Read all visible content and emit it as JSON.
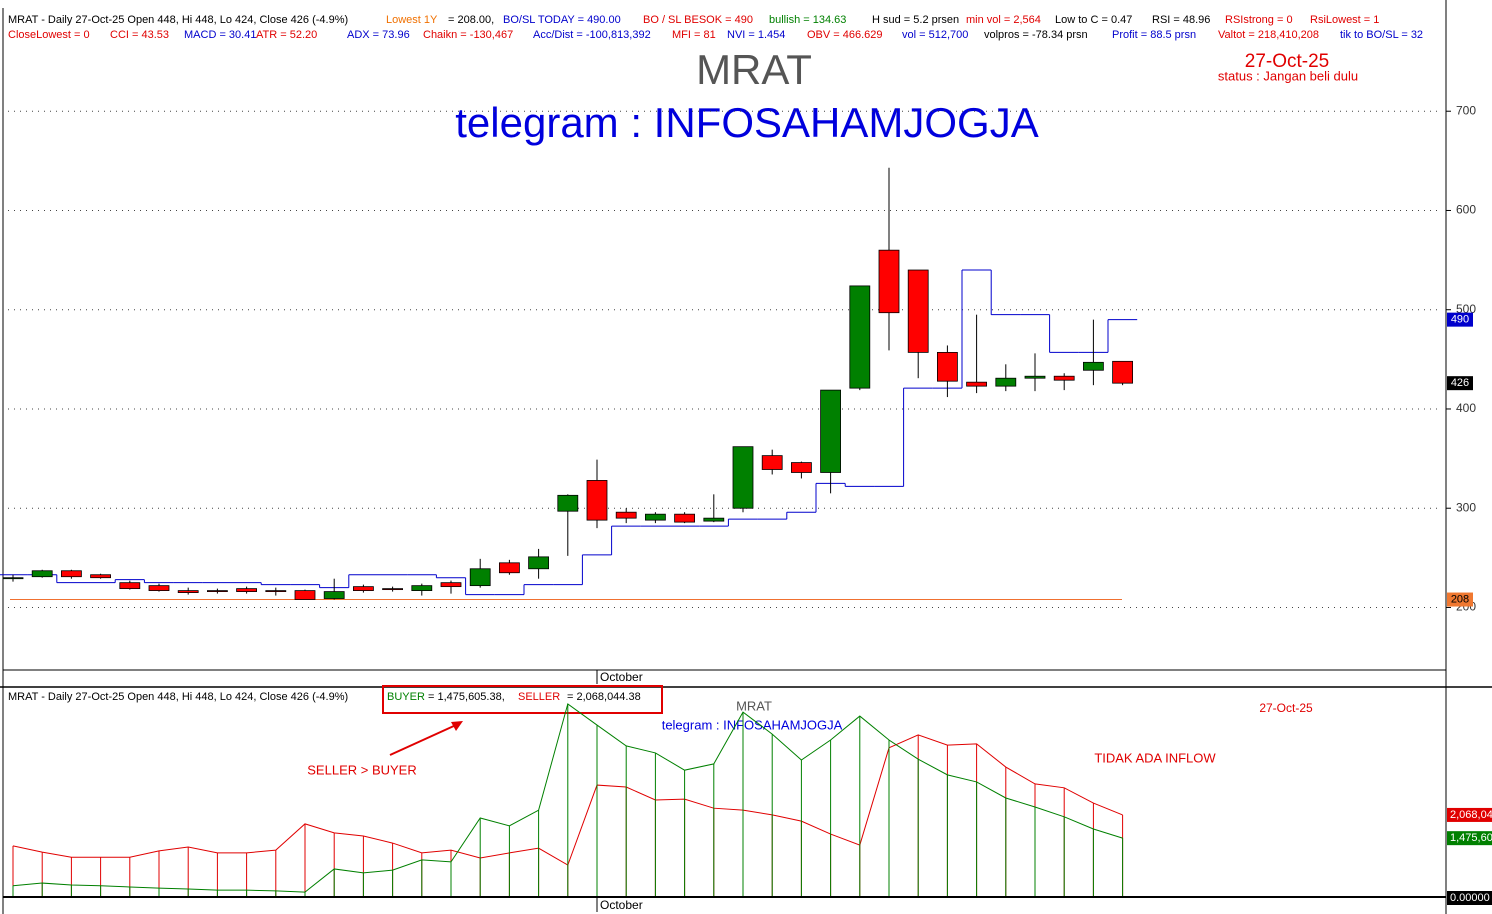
{
  "chart_data": [
    {
      "type": "candlestick",
      "header_rows": [
        [
          {
            "text": "MRAT - Daily 27-Oct-25 Open 448, Hi 448, Lo 424, Close 426 (-4.9%)",
            "color": "#000000"
          },
          {
            "text": "Lowest 1Y",
            "color": "#f07000"
          },
          {
            "text": "= 208.00,",
            "color": "#000000"
          },
          {
            "text": "BO/SL TODAY  = 490.00",
            "color": "#0000cc"
          },
          {
            "text": "BO / SL BESOK  = 490",
            "color": "#e00000"
          },
          {
            "text": "bullish = 134.63",
            "color": "#008000"
          },
          {
            "text": "H sud = 5.2 prsen",
            "color": "#000000"
          },
          {
            "text": "min vol = 2,564",
            "color": "#e00000"
          },
          {
            "text": "Low to C  = 0.47",
            "color": "#000000"
          },
          {
            "text": "RSI = 48.96",
            "color": "#000000"
          },
          {
            "text": "RSIstrong = 0",
            "color": "#e00000"
          },
          {
            "text": "RsiLowest = 1",
            "color": "#e00000"
          }
        ],
        [
          {
            "text": "CloseLowest = 0",
            "color": "#e00000"
          },
          {
            "text": "CCI = 43.53",
            "color": "#e00000"
          },
          {
            "text": "MACD = 30.41",
            "color": "#0000cc"
          },
          {
            "text": "ATR = 52.20",
            "color": "#e00000"
          },
          {
            "text": "ADX = 73.96",
            "color": "#0000cc"
          },
          {
            "text": "Chaikn = -130,467",
            "color": "#e00000"
          },
          {
            "text": "Acc/Dist = -100,813,392",
            "color": "#0000cc"
          },
          {
            "text": "MFI = 81",
            "color": "#e00000"
          },
          {
            "text": "NVI =   1.454",
            "color": "#0000cc"
          },
          {
            "text": "OBV = 466.629",
            "color": "#e00000"
          },
          {
            "text": "vol = 512,700",
            "color": "#0000cc"
          },
          {
            "text": "volpros = -78.34 prsn",
            "color": "#000000"
          },
          {
            "text": "Profit = 88.5 prsn",
            "color": "#0000cc"
          },
          {
            "text": "Valtot = 218,410,208",
            "color": "#e00000"
          },
          {
            "text": "tik to BO/SL = 32",
            "color": "#0000cc"
          }
        ]
      ],
      "title": "MRAT",
      "subtitle": "telegram : INFOSAHAMJOGJA",
      "date": "27-Oct-25",
      "status": "status : Jangan beli dulu",
      "categories": [
        null,
        null,
        null,
        null,
        null,
        null,
        null,
        null,
        null,
        null,
        null,
        null,
        null,
        null,
        null,
        null,
        null,
        null,
        null,
        null,
        "October",
        null,
        null,
        null,
        null,
        null,
        null,
        null,
        null,
        null,
        null,
        null,
        null,
        null,
        null,
        null,
        null,
        null,
        null
      ],
      "open": [
        230,
        231,
        237,
        233,
        225,
        222,
        217,
        217,
        219,
        217,
        217,
        209,
        221,
        219,
        217,
        225,
        222,
        245,
        239,
        297,
        328,
        296,
        288,
        294,
        287,
        300,
        353,
        346,
        336,
        421,
        560,
        540,
        457,
        427,
        423,
        431,
        433,
        439,
        448
      ],
      "high": [
        233,
        238,
        238,
        234,
        227,
        224,
        220,
        219,
        221,
        220,
        218,
        229,
        223,
        221,
        224,
        227,
        249,
        248,
        259,
        314,
        349,
        300,
        296,
        296,
        314,
        362,
        359,
        347,
        419,
        524,
        643,
        540,
        464,
        495,
        445,
        456,
        436,
        490,
        448
      ],
      "low": [
        226,
        230,
        229,
        229,
        218,
        216,
        213,
        214,
        214,
        212,
        208,
        208,
        215,
        216,
        212,
        214,
        220,
        233,
        229,
        252,
        280,
        285,
        285,
        285,
        286,
        296,
        334,
        330,
        315,
        419,
        459,
        431,
        412,
        416,
        418,
        418,
        419,
        424,
        424
      ],
      "close": [
        230,
        237,
        231,
        230,
        219,
        217,
        215,
        216,
        216,
        216,
        208,
        216,
        217,
        218,
        222,
        221,
        239,
        235,
        251,
        313,
        288,
        290,
        294,
        286,
        290,
        362,
        339,
        336,
        419,
        524,
        497,
        457,
        428,
        423,
        431,
        433,
        429,
        447,
        426
      ],
      "up_color": "#008000",
      "down_color": "#ff0000",
      "bosl": {
        "color": "#0000cc",
        "values": [
          233,
          233,
          225,
          225,
          228,
          225,
          225,
          225,
          225,
          223,
          223,
          220,
          233,
          233,
          233,
          230,
          213,
          213,
          223,
          223,
          253,
          282,
          282,
          282,
          282,
          289,
          289,
          296,
          325,
          322,
          322,
          421,
          421,
          540,
          495,
          495,
          457,
          457,
          490
        ]
      },
      "lowest": {
        "value": 208,
        "color": "#f07030"
      },
      "markers": [
        {
          "value": 490,
          "color": "#0000cc",
          "text_color": "#ffffff"
        },
        {
          "value": 426,
          "color": "#000000",
          "text_color": "#ffffff"
        },
        {
          "value": 208,
          "color": "#f07830",
          "text_color": "#000000"
        }
      ],
      "ylim": [
        137,
        804
      ],
      "yticks": [
        200,
        300,
        400,
        500,
        600,
        700
      ],
      "grid": true
    },
    {
      "type": "line",
      "header": "MRAT - Daily 27-Oct-25 Open 448, Hi 448, Lo 424, Close 426 (-4.9%)",
      "buyer_text": "= 1,475,605.38,",
      "seller_text": "= 2,068,044.38",
      "title": "MRAT",
      "subtitle": "telegram : INFOSAHAMJOGJA",
      "date": "27-Oct-25",
      "annotations": [
        {
          "text": "SELLER > BUYER",
          "color": "#e00000"
        },
        {
          "text": "TIDAK ADA INFLOW",
          "color": "#e00000"
        }
      ],
      "categories": [
        null,
        null,
        null,
        null,
        null,
        null,
        null,
        null,
        null,
        null,
        null,
        null,
        null,
        null,
        null,
        null,
        null,
        null,
        null,
        null,
        "October",
        null,
        null,
        null,
        null,
        null,
        null,
        null,
        null,
        null,
        null,
        null,
        null,
        null,
        null,
        null,
        null,
        null,
        null
      ],
      "series": [
        {
          "name": "SELLER",
          "color": "#e00000",
          "values": [
            1280000,
            1120000,
            990000,
            990000,
            990000,
            1150000,
            1250000,
            1100000,
            1100000,
            1170000,
            1840000,
            1610000,
            1530000,
            1350000,
            1100000,
            1170000,
            970000,
            1100000,
            1220000,
            790000,
            2830000,
            2780000,
            2450000,
            2470000,
            2240000,
            2190000,
            2070000,
            1910000,
            1580000,
            1300000,
            3780000,
            4110000,
            3850000,
            3880000,
            3290000,
            2860000,
            2760000,
            2370000,
            2068044.38
          ],
          "value_labels": [
            null,
            null,
            null,
            null,
            null,
            null,
            null,
            null,
            null,
            null,
            null,
            null,
            null,
            null,
            null,
            null,
            null,
            null,
            null,
            null,
            null,
            null,
            null,
            null,
            null,
            null,
            null,
            null,
            null,
            null,
            null,
            null,
            null,
            null,
            null,
            null,
            null,
            null,
            "2,068,044.38"
          ]
        },
        {
          "name": "BUYER",
          "color": "#008000",
          "values": [
            260000,
            330000,
            280000,
            260000,
            230000,
            200000,
            180000,
            150000,
            150000,
            130000,
            100000,
            690000,
            590000,
            660000,
            920000,
            870000,
            1990000,
            1790000,
            2190000,
            4900000,
            4360000,
            3830000,
            3650000,
            3210000,
            3370000,
            4690000,
            4130000,
            3470000,
            3980000,
            4590000,
            3980000,
            3490000,
            3090000,
            2910000,
            2500000,
            2270000,
            2020000,
            1710000,
            1475605.38
          ],
          "value_labels": [
            null,
            null,
            null,
            null,
            null,
            null,
            null,
            null,
            null,
            null,
            null,
            null,
            null,
            null,
            null,
            null,
            null,
            null,
            null,
            null,
            null,
            null,
            null,
            null,
            null,
            null,
            null,
            null,
            null,
            null,
            null,
            null,
            null,
            null,
            null,
            null,
            null,
            null,
            "1,475,605.38"
          ]
        }
      ],
      "ylim": [
        0,
        5000000
      ],
      "yticks": [
        {
          "value": 0,
          "label": "0.00000"
        }
      ]
    }
  ]
}
